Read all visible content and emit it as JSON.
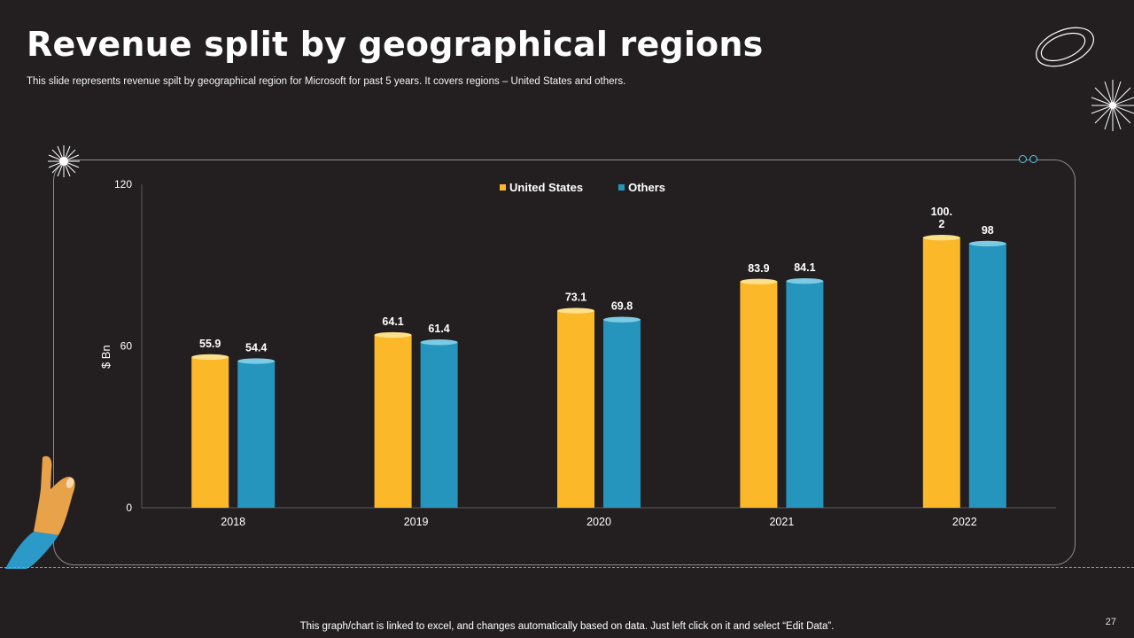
{
  "slide": {
    "title": "Revenue split by geographical regions",
    "subtitle": "This slide represents revenue spilt by geographical region for Microsoft for  past 5 years. It covers regions – United States and others.",
    "footer_note": "This graph/chart is linked to excel,  and changes automatically based on data. Just left click on it and select “Edit Data”.",
    "page_number": "27"
  },
  "colors": {
    "background": "#231f20",
    "united_states": "#fbb829",
    "others": "#2595bd"
  },
  "chart_data": {
    "type": "bar",
    "title": "",
    "xlabel": "",
    "ylabel": "$ Bn",
    "ylim": [
      0,
      120
    ],
    "yticks": [
      0,
      60,
      120
    ],
    "categories": [
      "2018",
      "2019",
      "2020",
      "2021",
      "2022"
    ],
    "series": [
      {
        "name": "United States",
        "values": [
          55.9,
          64.1,
          73.1,
          83.9,
          100.2
        ],
        "labels": [
          "55.9",
          "64.1",
          "73.1",
          "83.9",
          "100.\n2"
        ]
      },
      {
        "name": "Others",
        "values": [
          54.4,
          61.4,
          69.8,
          84.1,
          98
        ],
        "labels": [
          "54.4",
          "61.4",
          "69.8",
          "84.1",
          "98"
        ]
      }
    ],
    "legend_position": "top-center",
    "grid": false
  }
}
